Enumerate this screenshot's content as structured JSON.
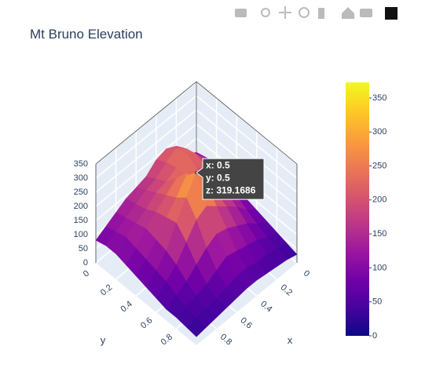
{
  "chart_data": {
    "type": "surface",
    "title": "Mt Bruno Elevation",
    "x": [
      0,
      0.1,
      0.2,
      0.3,
      0.4,
      0.5,
      0.6,
      0.7,
      0.8,
      0.9,
      1
    ],
    "y": [
      0,
      0.1,
      0.2,
      0.3,
      0.4,
      0.5,
      0.6,
      0.7,
      0.8,
      0.9,
      1
    ],
    "z": [
      [
        100,
        120,
        180,
        200,
        190,
        160,
        150,
        140,
        120,
        100,
        80
      ],
      [
        110,
        150,
        200,
        230,
        210,
        180,
        170,
        150,
        130,
        110,
        90
      ],
      [
        120,
        160,
        210,
        240,
        220,
        200,
        190,
        160,
        140,
        120,
        90
      ],
      [
        110,
        150,
        190,
        220,
        230,
        240,
        210,
        180,
        150,
        110,
        80
      ],
      [
        90,
        140,
        170,
        200,
        240,
        280,
        230,
        190,
        140,
        100,
        70
      ],
      [
        80,
        120,
        160,
        190,
        250,
        319.1686,
        260,
        200,
        130,
        90,
        60
      ],
      [
        70,
        100,
        140,
        170,
        200,
        230,
        210,
        160,
        110,
        80,
        50
      ],
      [
        60,
        80,
        110,
        130,
        150,
        160,
        140,
        110,
        80,
        60,
        40
      ],
      [
        50,
        60,
        80,
        90,
        100,
        110,
        90,
        70,
        60,
        50,
        40
      ],
      [
        40,
        50,
        60,
        60,
        70,
        70,
        60,
        50,
        45,
        40,
        35
      ],
      [
        30,
        40,
        45,
        50,
        55,
        55,
        50,
        45,
        40,
        35,
        30
      ]
    ],
    "xlabel": "x",
    "ylabel": "y",
    "xlim": [
      0,
      1
    ],
    "ylim": [
      0,
      1
    ],
    "zlim": [
      0,
      350
    ],
    "xticks": [
      0,
      0.2,
      0.4,
      0.6,
      0.8
    ],
    "yticks": [
      0,
      0.2,
      0.4,
      0.6,
      0.8
    ],
    "zticks": [
      0,
      50,
      100,
      150,
      200,
      250,
      300,
      350
    ],
    "colorscale": [
      "#0d0887",
      "#46039f",
      "#7201a8",
      "#9c179e",
      "#bd3786",
      "#d8576b",
      "#ed7953",
      "#fb9f3a",
      "#fdca26",
      "#f0f921"
    ],
    "clim": [
      0,
      373
    ],
    "colorbar_ticks": [
      0,
      50,
      100,
      150,
      200,
      250,
      300,
      350
    ],
    "grid": true,
    "hover": {
      "x": 0.5,
      "y": 0.5,
      "z": 319.1686,
      "labels": [
        "x: 0.5",
        "y: 0.5",
        "z: 319.1686"
      ]
    }
  }
}
